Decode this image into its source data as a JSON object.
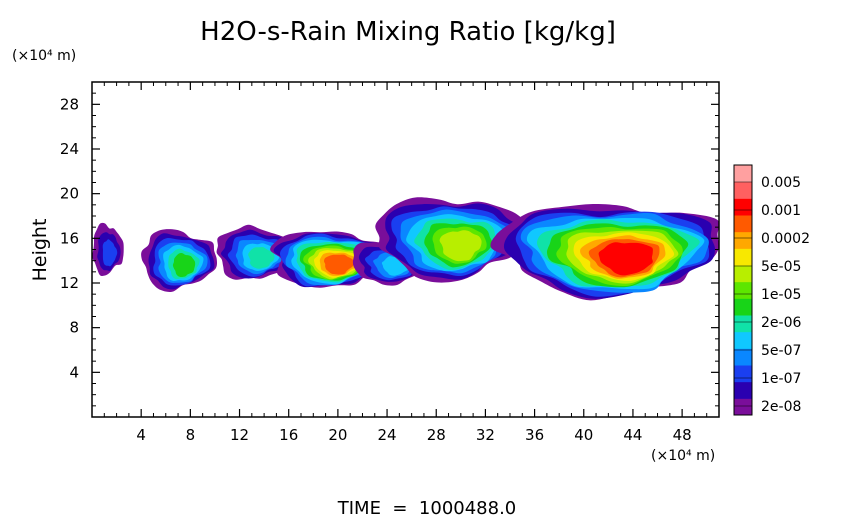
{
  "chart_data": {
    "type": "heatmap",
    "title": "H2O-s-Rain Mixing Ratio [kg/kg]",
    "ylabel": "Height",
    "x_unit_label": "(×10⁴ m)",
    "y_unit_label": "(×10⁴ m)",
    "footer": "TIME  =  1000488.0",
    "xlim": [
      0,
      51
    ],
    "ylim": [
      0,
      30
    ],
    "x_ticks": [
      "4",
      "8",
      "12",
      "16",
      "20",
      "24",
      "28",
      "32",
      "36",
      "40",
      "44",
      "48"
    ],
    "y_ticks": [
      "4",
      "8",
      "12",
      "16",
      "20",
      "24",
      "28"
    ],
    "colorbar": {
      "labels": [
        "0.005",
        "0.001",
        "0.0002",
        "5e-05",
        "1e-05",
        "2e-06",
        "5e-07",
        "1e-07",
        "2e-08"
      ],
      "colors": [
        "#7a0e9a",
        "#2a00b0",
        "#1a3ff0",
        "#0a87ff",
        "#10c8ff",
        "#10e2a8",
        "#18d418",
        "#5de600",
        "#b8ee00",
        "#f8e800",
        "#ffa800",
        "#ff5a00",
        "#ff0000",
        "#ff6060",
        "#ffa0a0"
      ]
    },
    "features": [
      {
        "level": 0,
        "x": [
          0.0,
          2.5
        ],
        "y": [
          12.8,
          17.2
        ],
        "peak": 2
      },
      {
        "level": 0,
        "x": [
          4.0,
          10.0
        ],
        "y": [
          11.5,
          16.7
        ],
        "peak": 6
      },
      {
        "level": 0,
        "x": [
          10.0,
          16.5
        ],
        "y": [
          12.4,
          17.0
        ],
        "peak": 5
      },
      {
        "level": 0,
        "x": [
          14.5,
          24.0
        ],
        "y": [
          11.7,
          16.7
        ],
        "peak": 11
      },
      {
        "level": 0,
        "x": [
          21.0,
          27.5
        ],
        "y": [
          12.0,
          15.8
        ],
        "peak": 4
      },
      {
        "level": 0,
        "x": [
          23.0,
          35.0
        ],
        "y": [
          12.5,
          19.7
        ],
        "peak": 8
      },
      {
        "level": 0,
        "x": [
          33.0,
          51.0
        ],
        "y": [
          11.0,
          19.2
        ],
        "peak": 12
      }
    ]
  }
}
